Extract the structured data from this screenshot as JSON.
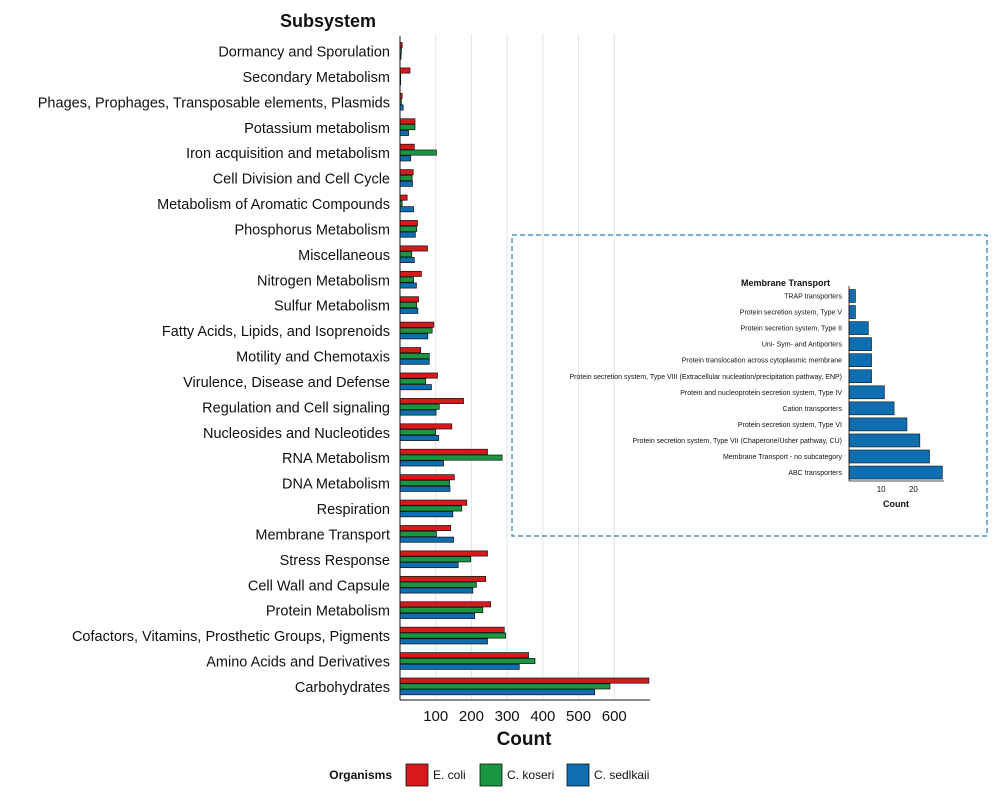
{
  "chart_data": [
    {
      "type": "bar",
      "orientation": "horizontal",
      "title": "Subsystem",
      "xlabel": "Count",
      "xticks": [
        100,
        200,
        300,
        400,
        500,
        600
      ],
      "xlim": [
        0,
        700
      ],
      "grid": "vertical",
      "categories": [
        "Dormancy and Sporulation",
        "Secondary Metabolism",
        "Phages, Prophages, Transposable elements, Plasmids",
        "Potassium metabolism",
        "Iron acquisition and metabolism",
        "Cell Division and Cell Cycle",
        "Metabolism of Aromatic Compounds",
        "Phosphorus Metabolism",
        "Miscellaneous",
        "Nitrogen Metabolism",
        "Sulfur Metabolism",
        "Fatty Acids, Lipids, and Isoprenoids",
        "Motility and Chemotaxis",
        "Virulence, Disease and Defense",
        "Regulation and Cell signaling",
        "Nucleosides and Nucleotides",
        "RNA Metabolism",
        "DNA Metabolism",
        "Respiration",
        "Membrane Transport",
        "Stress Response",
        "Cell Wall and Capsule",
        "Protein Metabolism",
        "Cofactors, Vitamins, Prosthetic Groups, Pigments",
        "Amino Acids and Derivatives",
        "Carbohydrates"
      ],
      "series": [
        {
          "name": "E. coli",
          "color": "#d7191c",
          "values": [
            6,
            28,
            6,
            42,
            40,
            37,
            20,
            49,
            77,
            60,
            52,
            95,
            58,
            105,
            178,
            145,
            245,
            152,
            187,
            142,
            245,
            240,
            254,
            292,
            360,
            697
          ]
        },
        {
          "name": "C. koseri",
          "color": "#1a9641",
          "values": [
            4,
            2,
            4,
            42,
            102,
            34,
            6,
            47,
            33,
            38,
            47,
            90,
            82,
            72,
            110,
            100,
            286,
            139,
            173,
            102,
            198,
            214,
            232,
            296,
            378,
            588
          ]
        },
        {
          "name": "C. sedlkaii",
          "color": "#0e6eb0",
          "values": [
            3,
            2,
            9,
            24,
            30,
            35,
            38,
            43,
            40,
            46,
            50,
            78,
            82,
            88,
            101,
            108,
            122,
            140,
            148,
            150,
            163,
            204,
            209,
            245,
            334,
            545
          ]
        }
      ],
      "legend": {
        "title": "Organisms",
        "position": "bottom"
      }
    },
    {
      "type": "bar",
      "orientation": "horizontal",
      "title": "Membrane Transport",
      "xlabel": "Count",
      "xticks": [
        10,
        20
      ],
      "xlim": [
        0,
        30
      ],
      "categories": [
        "TRAP transporters",
        "Protein secretion system, Type V",
        "Protein secretion system, Type II",
        "Uni- Sym- and Antiporters",
        "Protein translocation across cytoplasmic membrane",
        "Protein secretion system, Type VIII (Extracellular nucleation/precipitation pathway, ENP)",
        "Protein and nucleoprotein secretion system, Type IV",
        "Cation transporters",
        "Protein secretion system, Type VI",
        "Protein secretion system, Type VII (Chaperone/Usher pathway, CU)",
        "Membrane Transport - no subcategory",
        "ABC transporters"
      ],
      "values": [
        2,
        2,
        6,
        7,
        7,
        7,
        11,
        14,
        18,
        22,
        25,
        29
      ],
      "color": "#0e6eb0"
    }
  ]
}
